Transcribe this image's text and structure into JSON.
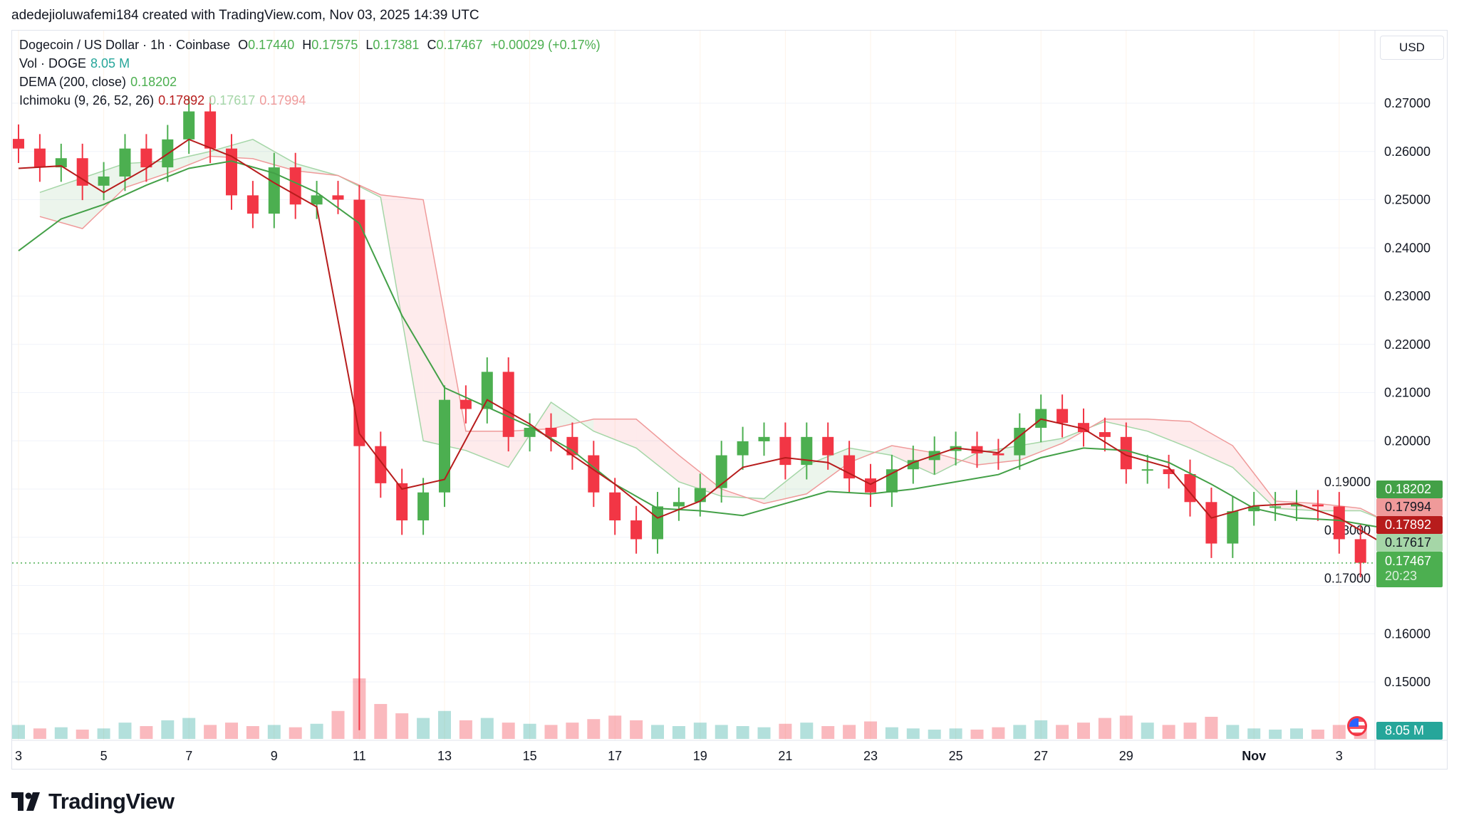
{
  "credit": "adedejioluwafemi184 created with TradingView.com, Nov 03, 2025 14:39 UTC",
  "legend": {
    "symbol": "Dogecoin / US Dollar · 1h · Coinbase",
    "o_label": "O",
    "o": "0.17440",
    "h_label": "H",
    "h": "0.17575",
    "l_label": "L",
    "l": "0.17381",
    "c_label": "C",
    "c": "0.17467",
    "change": "+0.00029 (+0.17%)",
    "vol_label": "Vol · DOGE",
    "vol": "8.05 M",
    "dema_label": "DEMA (200, close)",
    "dema": "0.18202",
    "ichimoku_label": "Ichimoku (9, 26, 52, 26)",
    "ichi1": "0.17892",
    "ichi2": "0.17617",
    "ichi3": "0.17994"
  },
  "currency_button": "USD",
  "price_tags": {
    "dema": "0.18202",
    "span_b": "0.17994",
    "tenkan": "0.17892",
    "span_a": "0.17617",
    "last": "0.17467",
    "countdown": "20:23",
    "volume": "8.05 M"
  },
  "colors": {
    "up": "#4caf50",
    "down": "#f23645",
    "dema": "#43a047",
    "tenkan": "#b71c1c",
    "span_a": "#a5d6a7",
    "span_b": "#ef9a9a",
    "volume_tag": "#26a69a"
  },
  "icons": {
    "events": "us-flag-icon"
  },
  "logo_text": "TradingView",
  "chart_data": {
    "type": "candlestick",
    "interval_shown": "12h approx",
    "y_ticks": [
      "0.27000",
      "0.26000",
      "0.25000",
      "0.24000",
      "0.23000",
      "0.22000",
      "0.21000",
      "0.20000",
      "0.19000",
      "0.18000",
      "0.17000",
      "0.16000",
      "0.15000"
    ],
    "ylim": [
      0.14,
      0.275
    ],
    "x_ticks": [
      {
        "day": 0,
        "label": "3"
      },
      {
        "day": 2,
        "label": "5"
      },
      {
        "day": 4,
        "label": "7"
      },
      {
        "day": 6,
        "label": "9"
      },
      {
        "day": 8,
        "label": "11"
      },
      {
        "day": 10,
        "label": "13"
      },
      {
        "day": 12,
        "label": "15"
      },
      {
        "day": 14,
        "label": "17"
      },
      {
        "day": 16,
        "label": "19"
      },
      {
        "day": 18,
        "label": "21"
      },
      {
        "day": 20,
        "label": "23"
      },
      {
        "day": 22,
        "label": "25"
      },
      {
        "day": 24,
        "label": "27"
      },
      {
        "day": 26,
        "label": "29"
      },
      {
        "day": 29,
        "label": "Nov",
        "bold": true
      },
      {
        "day": 31,
        "label": "3"
      }
    ],
    "closes": [
      0.2606,
      0.2567,
      0.2586,
      0.2529,
      0.2548,
      0.2606,
      0.2567,
      0.2625,
      0.2683,
      0.2606,
      0.2509,
      0.2471,
      0.2567,
      0.249,
      0.2509,
      0.25,
      0.1989,
      0.1912,
      0.1835,
      0.1893,
      0.2085,
      0.2066,
      0.2143,
      0.2008,
      0.2027,
      0.2008,
      0.197,
      0.1893,
      0.1835,
      0.1796,
      0.1864,
      0.1873,
      0.1902,
      0.197,
      0.1999,
      0.2008,
      0.195,
      0.2008,
      0.197,
      0.1922,
      0.1893,
      0.1941,
      0.196,
      0.1979,
      0.1989,
      0.1974,
      0.197,
      0.2027,
      0.2066,
      0.2037,
      0.2018,
      0.2008,
      0.1941,
      0.1941,
      0.1931,
      0.1873,
      0.1787,
      0.1854,
      0.1864,
      0.1864,
      0.1868,
      0.1864,
      0.1796,
      0.1747
    ],
    "lows_override": {
      "16": 0.14
    },
    "volume_m": [
      60,
      45,
      50,
      40,
      45,
      70,
      55,
      80,
      90,
      60,
      70,
      55,
      60,
      50,
      65,
      120,
      260,
      150,
      110,
      90,
      120,
      80,
      90,
      70,
      65,
      60,
      70,
      85,
      100,
      80,
      60,
      55,
      70,
      60,
      55,
      50,
      65,
      70,
      55,
      60,
      75,
      50,
      45,
      40,
      45,
      40,
      50,
      60,
      80,
      60,
      70,
      90,
      100,
      70,
      60,
      70,
      95,
      60,
      45,
      40,
      45,
      40,
      60,
      45
    ],
    "dema": [
      0.2394,
      0.246,
      0.249,
      0.253,
      0.2565,
      0.258,
      0.2555,
      0.2515,
      0.2451,
      0.226,
      0.211,
      0.207,
      0.203,
      0.198,
      0.191,
      0.186,
      0.1855,
      0.1845,
      0.187,
      0.1895,
      0.189,
      0.19,
      0.1915,
      0.193,
      0.1965,
      0.1985,
      0.198,
      0.1955,
      0.191,
      0.186,
      0.184,
      0.1835,
      0.182
    ],
    "tenkan": [
      0.2565,
      0.257,
      0.2515,
      0.2565,
      0.2625,
      0.259,
      0.2535,
      0.2485,
      0.2015,
      0.19,
      0.192,
      0.2085,
      0.2035,
      0.197,
      0.191,
      0.184,
      0.1875,
      0.1945,
      0.1965,
      0.1955,
      0.191,
      0.1955,
      0.1985,
      0.1975,
      0.2045,
      0.2025,
      0.197,
      0.1945,
      0.184,
      0.1865,
      0.187,
      0.184,
      0.1789
    ],
    "span_a": [
      0.2515,
      0.2545,
      0.2575,
      0.258,
      0.26,
      0.2625,
      0.2575,
      0.255,
      0.2505,
      0.2,
      0.198,
      0.1945,
      0.208,
      0.202,
      0.1985,
      0.1915,
      0.1885,
      0.188,
      0.195,
      0.1985,
      0.197,
      0.193,
      0.1975,
      0.199,
      0.2005,
      0.204,
      0.202,
      0.1985,
      0.1945,
      0.186,
      0.1855,
      0.1855,
      0.182
    ],
    "span_b": [
      0.2465,
      0.244,
      0.2525,
      0.2555,
      0.259,
      0.2585,
      0.256,
      0.255,
      0.251,
      0.25,
      0.202,
      0.202,
      0.2025,
      0.2045,
      0.2045,
      0.197,
      0.19,
      0.187,
      0.189,
      0.1955,
      0.199,
      0.1975,
      0.195,
      0.196,
      0.1995,
      0.2045,
      0.2045,
      0.204,
      0.199,
      0.1875,
      0.187,
      0.186,
      0.1815
    ],
    "last_price": 0.17467
  }
}
